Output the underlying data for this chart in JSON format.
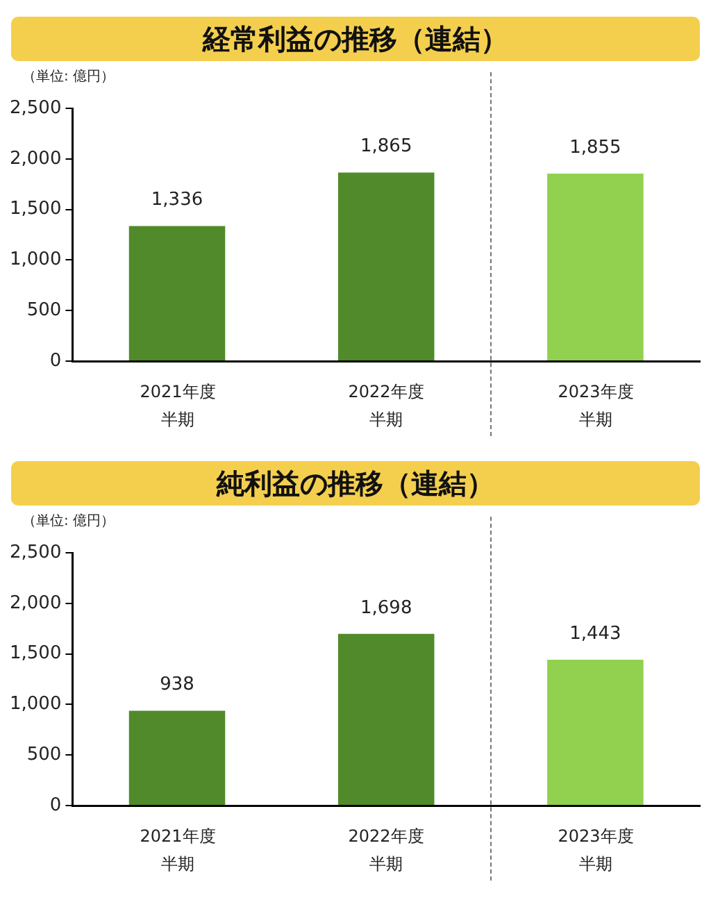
{
  "chart_data": [
    {
      "type": "bar",
      "title": "経常利益の推移（連結）",
      "ylabel": "（単位:  億円）",
      "categories": [
        "2021年度半期",
        "2022年度半期",
        "2023年度半期"
      ],
      "values": [
        1336,
        1865,
        1855
      ],
      "colors": [
        "#518a2a",
        "#518a2a",
        "#92d050"
      ],
      "ylim": [
        0,
        2500
      ],
      "yticks": [
        {
          "value": 0,
          "label": "0"
        },
        {
          "value": 500,
          "label": "500"
        },
        {
          "value": 1000,
          "label": "1,000"
        },
        {
          "value": 1500,
          "label": "1,500"
        },
        {
          "value": 2000,
          "label": "2,000"
        },
        {
          "value": 2500,
          "label": "2,500"
        }
      ],
      "value_labels": [
        "1,336",
        "1,865",
        "1,855"
      ],
      "legend": false
    },
    {
      "type": "bar",
      "title": "純利益の推移（連結）",
      "ylabel": "（単位:  億円）",
      "categories": [
        "2021年度半期",
        "2022年度半期",
        "2023年度半期"
      ],
      "values": [
        938,
        1698,
        1443
      ],
      "colors": [
        "#518a2a",
        "#518a2a",
        "#92d050"
      ],
      "ylim": [
        0,
        2500
      ],
      "yticks": [
        {
          "value": 0,
          "label": "0"
        },
        {
          "value": 500,
          "label": "500"
        },
        {
          "value": 1000,
          "label": "1,000"
        },
        {
          "value": 1500,
          "label": "1,500"
        },
        {
          "value": 2000,
          "label": "2,000"
        },
        {
          "value": 2500,
          "label": "2,500"
        }
      ],
      "value_labels": [
        "938",
        "1,698",
        "1,443"
      ],
      "legend": false
    }
  ]
}
